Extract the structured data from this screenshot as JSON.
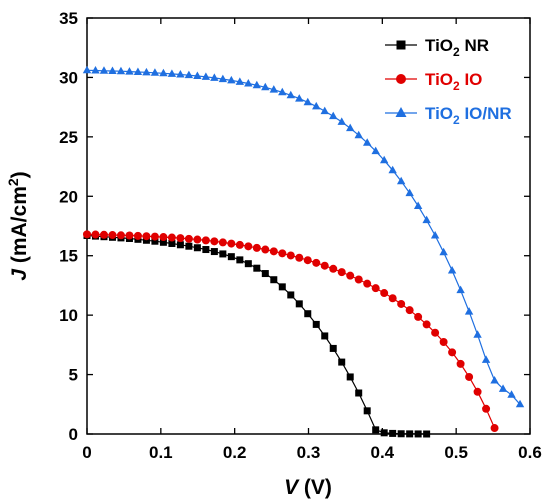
{
  "chart_data": {
    "type": "line",
    "title": "",
    "xlabel": {
      "var": "V",
      "unit": " (V)"
    },
    "ylabel": {
      "var": "J",
      "unit_pre": " (mA/cm",
      "unit_sup": "2",
      "unit_post": ")"
    },
    "xlim": [
      0,
      0.6
    ],
    "ylim": [
      0,
      35
    ],
    "xticks": [
      "0",
      "0.1",
      "0.2",
      "0.3",
      "0.4",
      "0.5",
      "0.6"
    ],
    "yticks": [
      "0",
      "5",
      "10",
      "15",
      "20",
      "25",
      "30",
      "35"
    ],
    "grid": false,
    "legend": {
      "placement": "top-right",
      "entries": [
        {
          "base": "TiO",
          "sub": "2",
          "rest": " NR"
        },
        {
          "base": "TiO",
          "sub": "2",
          "rest": " IO"
        },
        {
          "base": "TiO",
          "sub": "2",
          "rest": " IO/NR"
        }
      ]
    },
    "series": [
      {
        "name": "TiO2 NR",
        "color": "#000000",
        "marker": "square",
        "x": [
          0,
          0.0115,
          0.023,
          0.0345,
          0.046,
          0.0575,
          0.069,
          0.0805,
          0.092,
          0.1035,
          0.115,
          0.1265,
          0.138,
          0.1495,
          0.161,
          0.1725,
          0.184,
          0.1955,
          0.207,
          0.2185,
          0.23,
          0.2415,
          0.253,
          0.2645,
          0.276,
          0.2875,
          0.299,
          0.3105,
          0.322,
          0.3335,
          0.345,
          0.3565,
          0.368,
          0.3795,
          0.391,
          0.4025,
          0.414,
          0.4255,
          0.437,
          0.4485,
          0.46
        ],
        "y": [
          16.7,
          16.65,
          16.6,
          16.55,
          16.5,
          16.45,
          16.38,
          16.3,
          16.22,
          16.13,
          16.03,
          15.92,
          15.8,
          15.67,
          15.52,
          15.35,
          15.15,
          14.92,
          14.65,
          14.33,
          13.95,
          13.5,
          12.98,
          12.38,
          11.7,
          10.95,
          10.12,
          9.22,
          8.25,
          7.2,
          6.05,
          4.8,
          3.45,
          1.95,
          0.35,
          0.1,
          0.05,
          0.02,
          0.01,
          0.005,
          0
        ]
      },
      {
        "name": "TiO2 IO",
        "color": "#e00000",
        "marker": "circle",
        "x": [
          0,
          0.0115,
          0.023,
          0.0345,
          0.046,
          0.0575,
          0.069,
          0.0805,
          0.092,
          0.1035,
          0.115,
          0.1265,
          0.138,
          0.1495,
          0.161,
          0.1725,
          0.184,
          0.1955,
          0.207,
          0.2185,
          0.23,
          0.2415,
          0.253,
          0.2645,
          0.276,
          0.2875,
          0.299,
          0.3105,
          0.322,
          0.3335,
          0.345,
          0.3565,
          0.368,
          0.3795,
          0.391,
          0.4025,
          0.414,
          0.4255,
          0.437,
          0.4485,
          0.46,
          0.4715,
          0.483,
          0.4945,
          0.506,
          0.5175,
          0.529,
          0.5405,
          0.552
        ],
        "y": [
          16.8,
          16.78,
          16.76,
          16.74,
          16.72,
          16.7,
          16.67,
          16.64,
          16.61,
          16.57,
          16.53,
          16.48,
          16.42,
          16.36,
          16.29,
          16.21,
          16.12,
          16.02,
          15.91,
          15.79,
          15.66,
          15.52,
          15.37,
          15.2,
          15.02,
          14.83,
          14.62,
          14.4,
          14.16,
          13.9,
          13.62,
          13.32,
          13.0,
          12.65,
          12.27,
          11.86,
          11.42,
          10.94,
          10.42,
          9.85,
          9.22,
          8.52,
          7.74,
          6.87,
          5.9,
          4.8,
          3.55,
          2.12,
          0.5
        ]
      },
      {
        "name": "TiO2 IO/NR",
        "color": "#1f6fe0",
        "marker": "triangle",
        "x": [
          0,
          0.0115,
          0.023,
          0.0345,
          0.046,
          0.0575,
          0.069,
          0.0805,
          0.092,
          0.1035,
          0.115,
          0.1265,
          0.138,
          0.1495,
          0.161,
          0.1725,
          0.184,
          0.1955,
          0.207,
          0.2185,
          0.23,
          0.2415,
          0.253,
          0.2645,
          0.276,
          0.2875,
          0.299,
          0.3105,
          0.322,
          0.3335,
          0.345,
          0.3565,
          0.368,
          0.3795,
          0.391,
          0.4025,
          0.414,
          0.4255,
          0.437,
          0.4485,
          0.46,
          0.4715,
          0.483,
          0.4945,
          0.506,
          0.5175,
          0.529,
          0.5405,
          0.552,
          0.5635,
          0.575,
          0.5865
        ],
        "y": [
          30.6,
          30.58,
          30.56,
          30.54,
          30.52,
          30.49,
          30.46,
          30.43,
          30.39,
          30.35,
          30.3,
          30.25,
          30.19,
          30.12,
          30.05,
          29.96,
          29.86,
          29.75,
          29.63,
          29.49,
          29.34,
          29.17,
          28.97,
          28.75,
          28.5,
          28.22,
          27.91,
          27.56,
          27.17,
          26.74,
          26.26,
          25.73,
          25.14,
          24.5,
          23.8,
          23.03,
          22.19,
          21.27,
          20.27,
          19.18,
          17.99,
          16.7,
          15.29,
          13.76,
          12.1,
          10.3,
          8.35,
          6.24,
          4.5,
          3.8,
          3.3,
          2.5
        ]
      }
    ]
  }
}
